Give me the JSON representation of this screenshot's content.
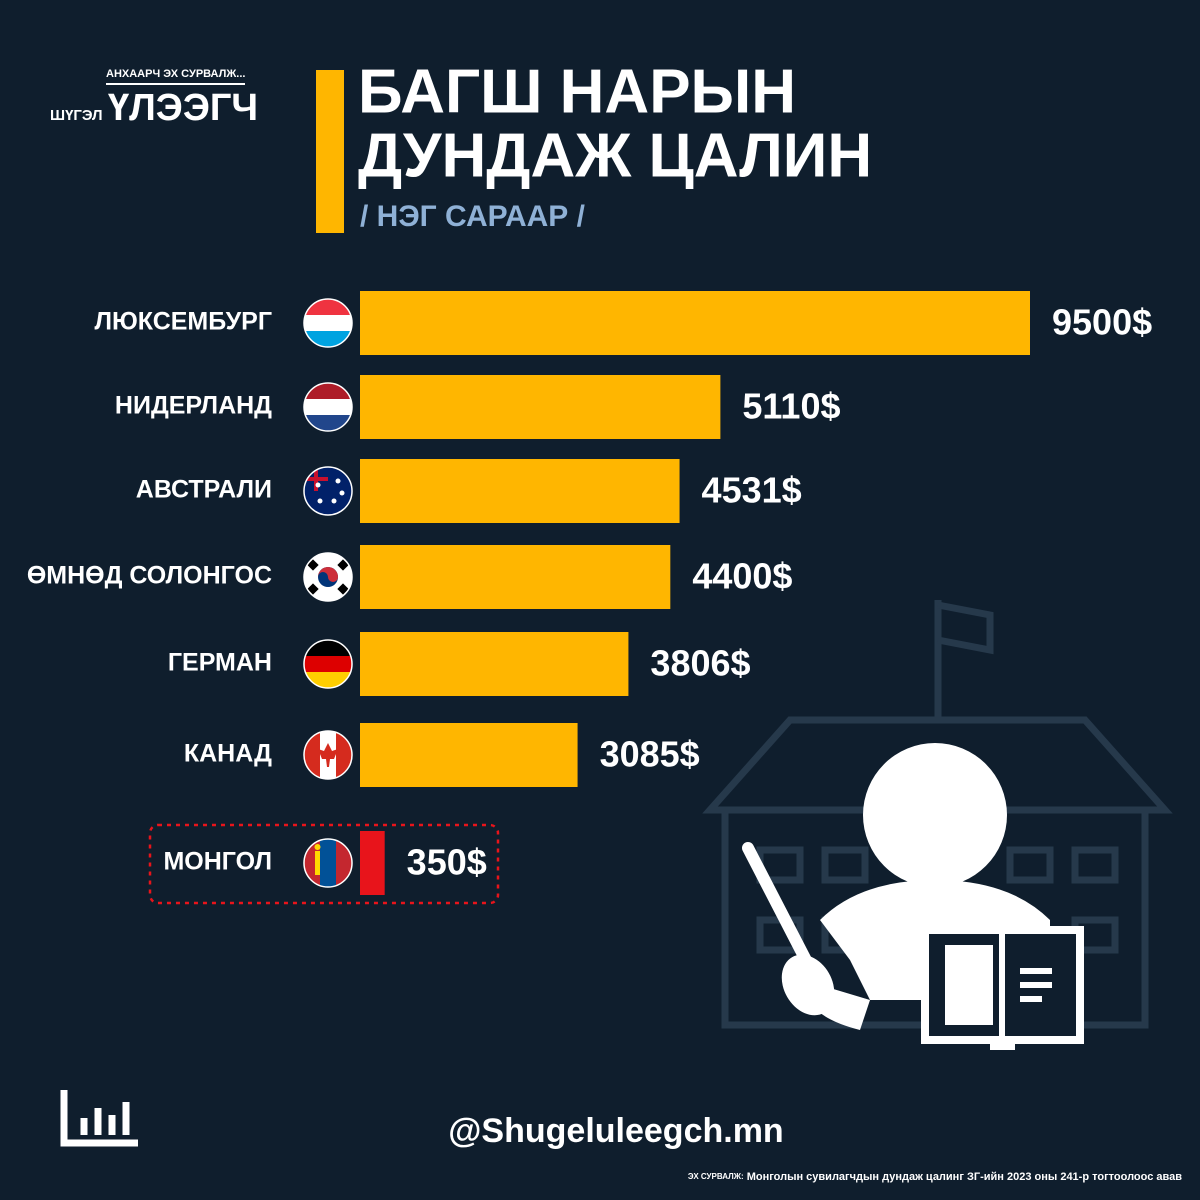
{
  "header": {
    "logo_tagline": "АНХААРЧ ЭХ СУРВАЛЖ...",
    "logo_small": "ШҮГЭЛ",
    "logo_big": "ҮЛЭЭГЧ"
  },
  "chart_data": {
    "type": "bar",
    "orientation": "horizontal",
    "title_lines": [
      "БАГШ НАРЫН",
      "ДУНДАЖ ЦАЛИН"
    ],
    "subtitle": "/ НЭГ САРААР /",
    "categories": [
      "ЛЮКСЕМБУРГ",
      "НИДЕРЛАНД",
      "АВСТРАЛИ",
      "ӨМНӨД СОЛОНГОС",
      "ГЕРМАН",
      "КАНАД",
      "МОНГОЛ"
    ],
    "values": [
      9500,
      5110,
      4531,
      4400,
      3806,
      3085,
      350
    ],
    "value_labels": [
      "9500$",
      "5110$",
      "4531$",
      "4400$",
      "3806$",
      "3085$",
      "350$"
    ],
    "colors": [
      "#ffb600",
      "#ffb600",
      "#ffb600",
      "#ffb600",
      "#ffb600",
      "#ffb600",
      "#e8141b"
    ]
  },
  "footer": {
    "handle": "@Shugeluleegch.mn",
    "source_label": "ЭХ СУРВАЛЖ:",
    "source": "Монголын сувилагчдын дундаж цалинг ЗГ-ийн 2023 оны 241-р тогтоолоос авав"
  }
}
